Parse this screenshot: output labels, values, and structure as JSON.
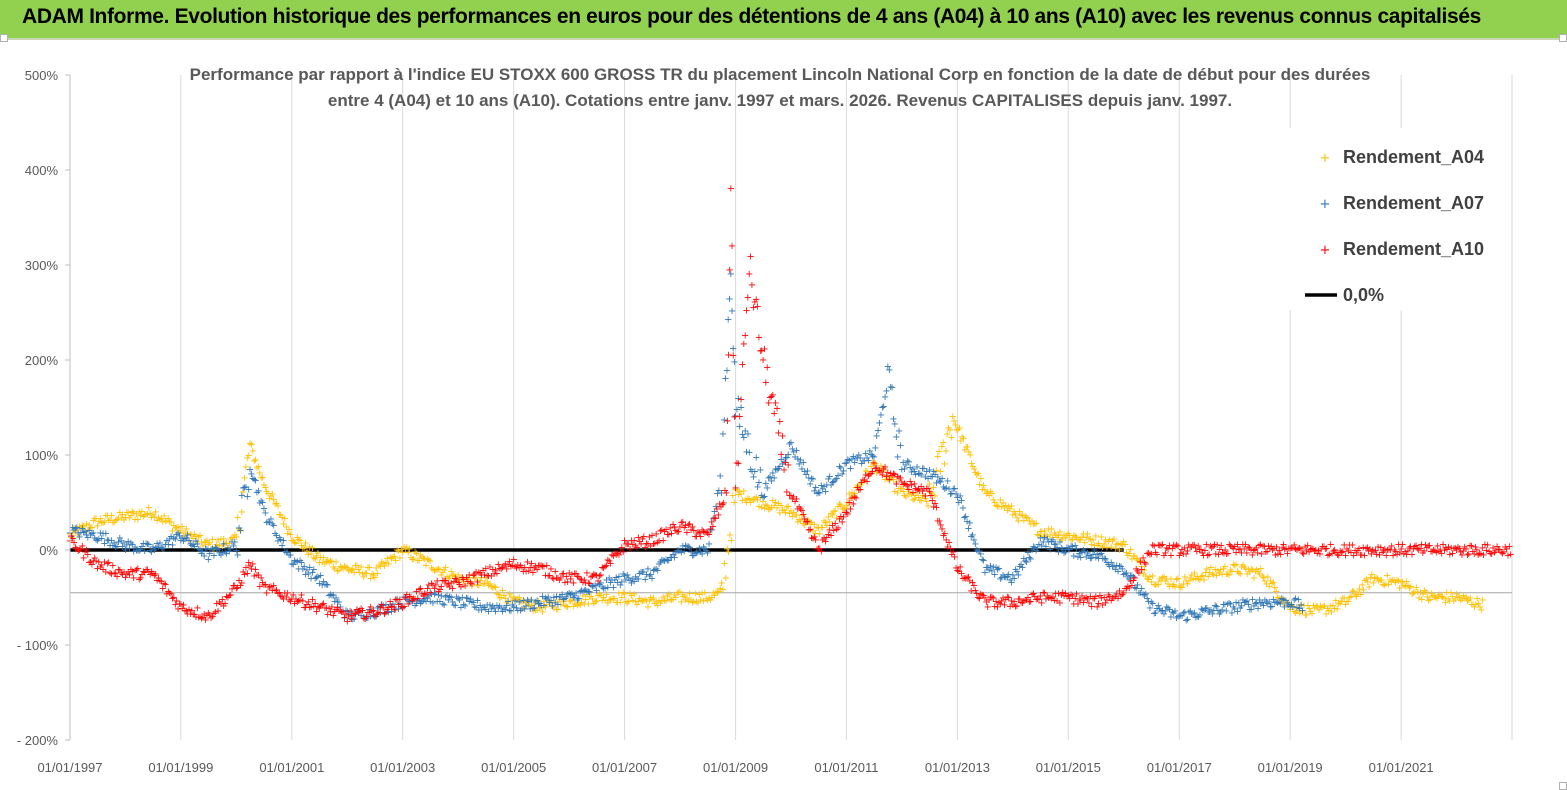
{
  "header": {
    "title": "ADAM Informe. Evolution historique des performances en euros pour des détentions de 4 ans (A04) à 10 ans (A10) avec les revenus connus capitalisés",
    "background": "#92d050"
  },
  "chart_data": {
    "type": "scatter",
    "title_lines": [
      "Performance par rapport à l'indice EU STOXX 600 GROSS TR  du placement Lincoln National Corp en fonction de la date de début pour des durées",
      "entre 4 (A04) et 10 ans (A10). Cotations entre janv. 1997 et mars. 2026. Revenus CAPITALISES depuis janv. 1997."
    ],
    "xlabel": "",
    "ylabel": "",
    "x_range": [
      "1997-01-01",
      "2023-01-01"
    ],
    "ylim": [
      -200,
      500
    ],
    "y_ticks": [
      500,
      400,
      300,
      200,
      100,
      0,
      -100,
      -200
    ],
    "y_tick_labels": [
      "500%",
      "400%",
      "300%",
      "200%",
      "100%",
      "0%",
      "- 100%",
      "- 200%"
    ],
    "x_tick_labels": [
      "01/01/1997",
      "01/01/1999",
      "01/01/2001",
      "01/01/2003",
      "01/01/2005",
      "01/01/2007",
      "01/01/2009",
      "01/01/2011",
      "01/01/2013",
      "01/01/2015",
      "01/01/2017",
      "01/01/2019",
      "01/01/2021"
    ],
    "grid": "vertical lines at x ticks",
    "legend_position": "top-right",
    "series": [
      {
        "name": "Rendement_A04",
        "color": "#ffc000",
        "points": [
          [
            "1997-01-01",
            15
          ],
          [
            "1997-07-01",
            30
          ],
          [
            "1998-01-01",
            35
          ],
          [
            "1998-07-01",
            40
          ],
          [
            "1999-01-01",
            20
          ],
          [
            "1999-07-01",
            5
          ],
          [
            "2000-01-01",
            10
          ],
          [
            "2000-04-01",
            110
          ],
          [
            "2000-07-01",
            70
          ],
          [
            "2001-01-01",
            15
          ],
          [
            "2001-07-01",
            -10
          ],
          [
            "2002-01-01",
            -20
          ],
          [
            "2002-07-01",
            -25
          ],
          [
            "2003-01-01",
            0
          ],
          [
            "2003-07-01",
            -15
          ],
          [
            "2004-01-01",
            -30
          ],
          [
            "2004-07-01",
            -35
          ],
          [
            "2005-01-01",
            -55
          ],
          [
            "2005-07-01",
            -60
          ],
          [
            "2006-01-01",
            -55
          ],
          [
            "2006-07-01",
            -50
          ],
          [
            "2007-01-01",
            -50
          ],
          [
            "2007-07-01",
            -55
          ],
          [
            "2008-01-01",
            -50
          ],
          [
            "2008-07-01",
            -50
          ],
          [
            "2008-10-01",
            -45
          ],
          [
            "2009-01-01",
            60
          ],
          [
            "2009-07-01",
            50
          ],
          [
            "2010-01-01",
            40
          ],
          [
            "2010-07-01",
            20
          ],
          [
            "2011-01-01",
            50
          ],
          [
            "2011-07-01",
            90
          ],
          [
            "2012-01-01",
            60
          ],
          [
            "2012-07-01",
            50
          ],
          [
            "2012-12-01",
            140
          ],
          [
            "2013-07-01",
            60
          ],
          [
            "2014-01-01",
            40
          ],
          [
            "2014-07-01",
            20
          ],
          [
            "2015-01-01",
            15
          ],
          [
            "2015-07-01",
            10
          ],
          [
            "2016-01-01",
            5
          ],
          [
            "2016-07-01",
            -30
          ],
          [
            "2017-01-01",
            -35
          ],
          [
            "2017-07-01",
            -25
          ],
          [
            "2018-01-01",
            -20
          ],
          [
            "2018-07-01",
            -25
          ],
          [
            "2019-01-01",
            -60
          ],
          [
            "2019-07-01",
            -65
          ],
          [
            "2020-01-01",
            -55
          ],
          [
            "2020-07-01",
            -30
          ],
          [
            "2021-01-01",
            -35
          ],
          [
            "2021-07-01",
            -50
          ],
          [
            "2022-01-01",
            -50
          ],
          [
            "2022-07-01",
            -58
          ]
        ]
      },
      {
        "name": "Rendement_A07",
        "color": "#2e75b6",
        "points": [
          [
            "1997-01-01",
            20
          ],
          [
            "1997-07-01",
            15
          ],
          [
            "1998-01-01",
            5
          ],
          [
            "1998-07-01",
            0
          ],
          [
            "1999-01-01",
            15
          ],
          [
            "1999-07-01",
            -5
          ],
          [
            "2000-01-01",
            5
          ],
          [
            "2000-04-01",
            90
          ],
          [
            "2000-07-01",
            40
          ],
          [
            "2001-01-01",
            -10
          ],
          [
            "2001-07-01",
            -30
          ],
          [
            "2002-01-01",
            -70
          ],
          [
            "2002-07-01",
            -65
          ],
          [
            "2003-01-01",
            -55
          ],
          [
            "2003-07-01",
            -50
          ],
          [
            "2004-01-01",
            -55
          ],
          [
            "2004-07-01",
            -60
          ],
          [
            "2005-01-01",
            -60
          ],
          [
            "2005-07-01",
            -55
          ],
          [
            "2006-01-01",
            -50
          ],
          [
            "2006-07-01",
            -40
          ],
          [
            "2007-01-01",
            -30
          ],
          [
            "2007-07-01",
            -25
          ],
          [
            "2008-01-01",
            0
          ],
          [
            "2008-07-01",
            0
          ],
          [
            "2008-10-01",
            80
          ],
          [
            "2008-12-01",
            300
          ],
          [
            "2009-01-01",
            150
          ],
          [
            "2009-07-01",
            60
          ],
          [
            "2010-01-01",
            110
          ],
          [
            "2010-07-01",
            60
          ],
          [
            "2011-01-01",
            90
          ],
          [
            "2011-07-01",
            100
          ],
          [
            "2011-10-01",
            180
          ],
          [
            "2012-01-01",
            90
          ],
          [
            "2012-07-01",
            80
          ],
          [
            "2013-01-01",
            60
          ],
          [
            "2013-07-01",
            -20
          ],
          [
            "2014-01-01",
            -30
          ],
          [
            "2014-07-01",
            10
          ],
          [
            "2015-01-01",
            0
          ],
          [
            "2015-07-01",
            -5
          ],
          [
            "2016-01-01",
            -20
          ],
          [
            "2016-07-01",
            -60
          ],
          [
            "2017-01-01",
            -70
          ],
          [
            "2017-07-01",
            -65
          ],
          [
            "2018-01-01",
            -60
          ],
          [
            "2018-07-01",
            -55
          ],
          [
            "2019-01-01",
            -55
          ],
          [
            "2019-04-01",
            -60
          ]
        ]
      },
      {
        "name": "Rendement_A10",
        "color": "#ff0000",
        "points": [
          [
            "1997-01-01",
            10
          ],
          [
            "1997-07-01",
            -15
          ],
          [
            "1998-01-01",
            -25
          ],
          [
            "1998-07-01",
            -25
          ],
          [
            "1999-01-01",
            -60
          ],
          [
            "1999-07-01",
            -70
          ],
          [
            "2000-01-01",
            -40
          ],
          [
            "2000-04-01",
            -15
          ],
          [
            "2000-07-01",
            -40
          ],
          [
            "2001-01-01",
            -50
          ],
          [
            "2001-07-01",
            -60
          ],
          [
            "2002-01-01",
            -70
          ],
          [
            "2002-07-01",
            -65
          ],
          [
            "2003-01-01",
            -55
          ],
          [
            "2003-07-01",
            -40
          ],
          [
            "2004-01-01",
            -35
          ],
          [
            "2004-07-01",
            -25
          ],
          [
            "2005-01-01",
            -15
          ],
          [
            "2005-07-01",
            -20
          ],
          [
            "2006-01-01",
            -30
          ],
          [
            "2006-07-01",
            -30
          ],
          [
            "2007-01-01",
            5
          ],
          [
            "2007-07-01",
            10
          ],
          [
            "2008-01-01",
            25
          ],
          [
            "2008-07-01",
            15
          ],
          [
            "2008-11-01",
            60
          ],
          [
            "2008-12-01",
            380
          ],
          [
            "2009-01-01",
            60
          ],
          [
            "2009-04-01",
            300
          ],
          [
            "2009-07-01",
            200
          ],
          [
            "2010-01-01",
            60
          ],
          [
            "2010-07-01",
            0
          ],
          [
            "2011-01-01",
            40
          ],
          [
            "2011-07-01",
            90
          ],
          [
            "2012-01-01",
            70
          ],
          [
            "2012-07-01",
            60
          ],
          [
            "2013-01-01",
            -20
          ],
          [
            "2013-07-01",
            -55
          ],
          [
            "2014-01-01",
            -55
          ],
          [
            "2014-07-01",
            -50
          ],
          [
            "2015-01-01",
            -50
          ],
          [
            "2015-07-01",
            -55
          ],
          [
            "2016-01-01",
            -45
          ],
          [
            "2016-07-01",
            0
          ],
          [
            "2017-01-01",
            0
          ],
          [
            "2018-01-01",
            0
          ],
          [
            "2019-01-01",
            0
          ],
          [
            "2020-01-01",
            0
          ],
          [
            "2021-01-01",
            0
          ],
          [
            "2022-01-01",
            0
          ],
          [
            "2023-01-01",
            0
          ]
        ]
      },
      {
        "name": "0,0%",
        "color": "#000000",
        "type": "line",
        "points": [
          [
            "1997-01-01",
            0
          ],
          [
            "2016-01-01",
            0
          ]
        ]
      }
    ]
  }
}
